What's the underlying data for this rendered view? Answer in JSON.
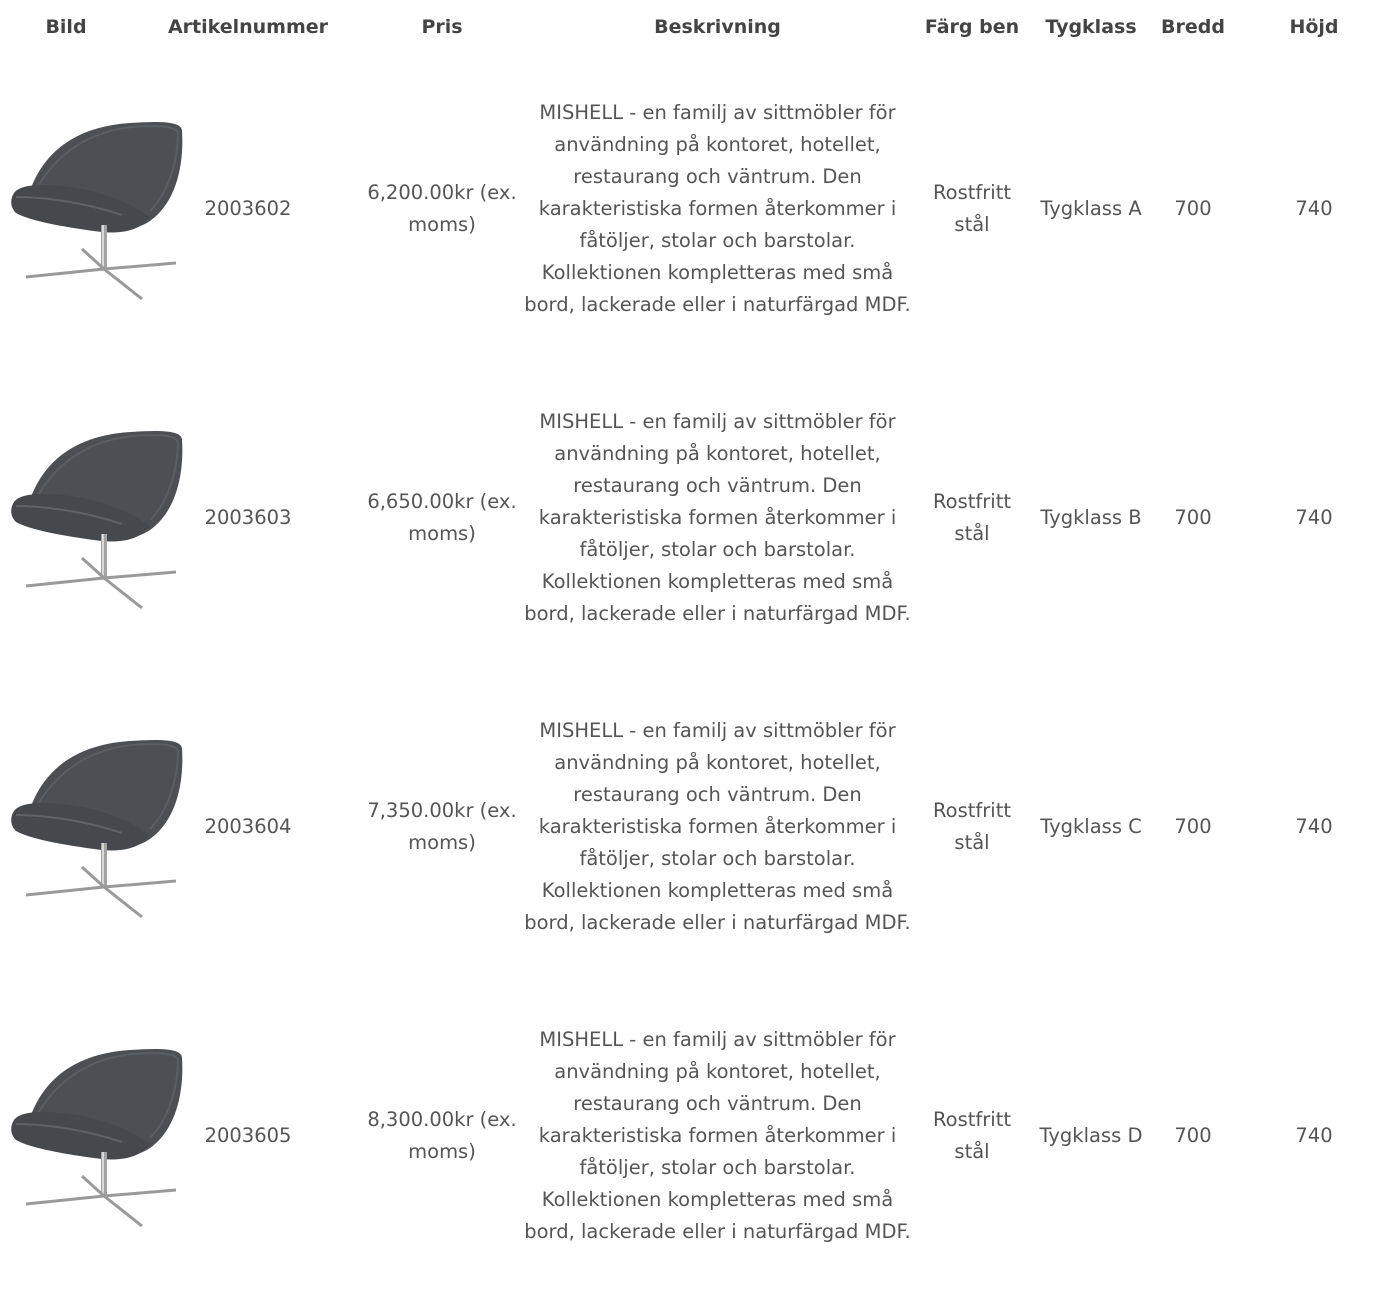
{
  "table": {
    "headers": [
      "Bild",
      "Artikelnummer",
      "Pris",
      "Beskrivning",
      "Färg ben",
      "Tygklass",
      "Bredd",
      "Höjd"
    ],
    "rows": [
      {
        "image_icon": "lounge-chair-image",
        "article": "2003602",
        "price": "6,200.00kr (ex. moms)",
        "description": "MISHELL - en familj av sittmöbler för användning på kontoret, hotellet, restaurang och väntrum. Den karakteristiska formen återkommer i fåtöljer, stolar och barstolar. Kollektionen kompletteras med små bord, lackerade eller i naturfärgad MDF.",
        "leg_color": "Rostfritt stål",
        "fabric_class": "Tygklass A",
        "width": "700",
        "height": "740"
      },
      {
        "image_icon": "lounge-chair-image",
        "article": "2003603",
        "price": "6,650.00kr (ex. moms)",
        "description": "MISHELL - en familj av sittmöbler för användning på kontoret, hotellet, restaurang och väntrum. Den karakteristiska formen återkommer i fåtöljer, stolar och barstolar. Kollektionen kompletteras med små bord, lackerade eller i naturfärgad MDF.",
        "leg_color": "Rostfritt stål",
        "fabric_class": "Tygklass B",
        "width": "700",
        "height": "740"
      },
      {
        "image_icon": "lounge-chair-image",
        "article": "2003604",
        "price": "7,350.00kr (ex. moms)",
        "description": "MISHELL - en familj av sittmöbler för användning på kontoret, hotellet, restaurang och väntrum. Den karakteristiska formen återkommer i fåtöljer, stolar och barstolar. Kollektionen kompletteras med små bord, lackerade eller i naturfärgad MDF.",
        "leg_color": "Rostfritt stål",
        "fabric_class": "Tygklass C",
        "width": "700",
        "height": "740"
      },
      {
        "image_icon": "lounge-chair-image",
        "article": "2003605",
        "price": "8,300.00kr (ex. moms)",
        "description": "MISHELL - en familj av sittmöbler för användning på kontoret, hotellet, restaurang och väntrum. Den karakteristiska formen återkommer i fåtöljer, stolar och barstolar. Kollektionen kompletteras med små bord, lackerade eller i naturfärgad MDF.",
        "leg_color": "Rostfritt stål",
        "fabric_class": "Tygklass D",
        "width": "700",
        "height": "740"
      }
    ]
  },
  "colors": {
    "text": "#555555",
    "header_text": "#444444",
    "chair_fabric": "#4a4d52",
    "chair_leg": "#9a9a9a"
  }
}
